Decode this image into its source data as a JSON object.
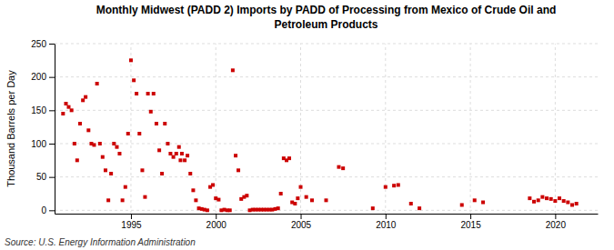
{
  "chart_data": {
    "type": "scatter",
    "title": "Monthly Midwest (PADD 2) Imports by PADD of Processing from Mexico of Crude Oil and\nPetroleum Products",
    "ylabel": "Thousand Barrels per Day",
    "source": "Source: U.S. Energy Information Administration",
    "color": "#cc0000",
    "marker": "square",
    "grid": true,
    "xlim": [
      1990.5,
      2022.5
    ],
    "ylim": [
      -5,
      250
    ],
    "xticks": [
      1995,
      2000,
      2005,
      2010,
      2015,
      2020
    ],
    "yticks": [
      0,
      50,
      100,
      150,
      200,
      250
    ],
    "x": [
      1991.0,
      1991.17,
      1991.33,
      1991.5,
      1991.67,
      1991.83,
      1992.0,
      1992.17,
      1992.33,
      1992.5,
      1992.67,
      1992.83,
      1993.0,
      1993.17,
      1993.33,
      1993.5,
      1993.67,
      1993.83,
      1994.0,
      1994.17,
      1994.33,
      1994.5,
      1994.67,
      1994.83,
      1995.0,
      1995.17,
      1995.33,
      1995.5,
      1995.67,
      1995.83,
      1996.0,
      1996.17,
      1996.33,
      1996.5,
      1996.67,
      1996.83,
      1997.0,
      1997.17,
      1997.33,
      1997.5,
      1997.67,
      1997.83,
      1997.92,
      1998.0,
      1998.17,
      1998.33,
      1998.5,
      1998.67,
      1998.83,
      1999.0,
      1999.17,
      1999.33,
      1999.5,
      1999.67,
      1999.83,
      2000.0,
      2000.17,
      2000.33,
      2000.5,
      2000.67,
      2000.83,
      2001.0,
      2001.17,
      2001.33,
      2001.5,
      2001.67,
      2001.83,
      2002.0,
      2002.17,
      2002.33,
      2002.5,
      2002.67,
      2002.83,
      2003.0,
      2003.17,
      2003.33,
      2003.5,
      2003.67,
      2003.83,
      2004.0,
      2004.17,
      2004.33,
      2004.5,
      2004.67,
      2004.83,
      2005.0,
      2005.33,
      2005.67,
      2006.5,
      2007.25,
      2007.5,
      2009.25,
      2010.0,
      2010.5,
      2010.75,
      2011.5,
      2012.0,
      2014.5,
      2015.25,
      2015.75,
      2018.5,
      2018.75,
      2019.0,
      2019.25,
      2019.5,
      2019.75,
      2020.0,
      2020.25,
      2020.5,
      2020.75,
      2021.0,
      2021.25
    ],
    "values": [
      145,
      160,
      155,
      150,
      100,
      75,
      130,
      165,
      170,
      120,
      100,
      98,
      190,
      100,
      80,
      60,
      15,
      55,
      100,
      95,
      85,
      15,
      35,
      115,
      225,
      195,
      175,
      115,
      60,
      20,
      175,
      148,
      175,
      130,
      90,
      55,
      130,
      100,
      85,
      80,
      85,
      95,
      75,
      85,
      75,
      82,
      55,
      30,
      15,
      3,
      2,
      1,
      0,
      35,
      38,
      18,
      16,
      0,
      1,
      0,
      0,
      210,
      82,
      60,
      17,
      20,
      22,
      0,
      1,
      1,
      1,
      1,
      1,
      1,
      1,
      1,
      2,
      3,
      25,
      78,
      75,
      78,
      12,
      10,
      18,
      35,
      20,
      15,
      15,
      65,
      63,
      3,
      35,
      37,
      38,
      10,
      3,
      8,
      15,
      12,
      18,
      13,
      15,
      20,
      18,
      17,
      14,
      18,
      14,
      12,
      8,
      10
    ]
  }
}
